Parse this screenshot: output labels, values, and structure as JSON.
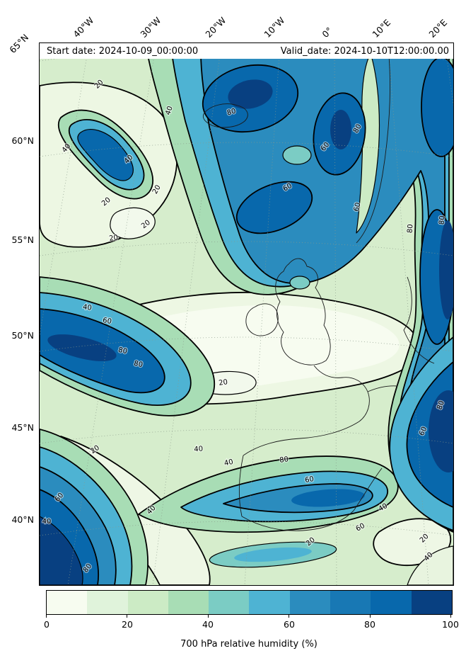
{
  "header": {
    "start_date": "Start date: 2024-10-09_00:00:00",
    "valid_date": "Valid_date: 2024-10-10T12:00:00.00"
  },
  "axes": {
    "lon_ticks": [
      "40°W",
      "30°W",
      "20°W",
      "10°W",
      "0°",
      "10°E",
      "20°E"
    ],
    "lat_ticks": [
      "65°N",
      "60°N",
      "55°N",
      "50°N",
      "45°N",
      "40°N"
    ]
  },
  "colorbar": {
    "label": "700 hPa relative humidity (%)",
    "ticks": [
      "0",
      "20",
      "40",
      "60",
      "80",
      "100"
    ],
    "colors": [
      "#f7fcf0",
      "#e0f3db",
      "#ccebc5",
      "#a8ddb5",
      "#7bccc4",
      "#4eb3d3",
      "#2b8cbe",
      "#1878b4",
      "#0868ac",
      "#084081"
    ]
  },
  "map": {
    "contour_labels": {
      "l20": "20",
      "l40": "40",
      "l60": "60",
      "l80": "80"
    }
  },
  "chart_data": {
    "type": "heatmap",
    "subtype": "filled-contour-weather-map",
    "title": "700 hPa relative humidity (%)",
    "start_date": "2024-10-09_00:00:00",
    "valid_date": "2024-10-10T12:00:00.00",
    "units": "%",
    "colormap": "green-to-blue (GnBu-like)",
    "fill_levels": [
      0,
      10,
      20,
      30,
      40,
      50,
      60,
      70,
      80,
      90,
      100
    ],
    "contour_line_levels": [
      20,
      40,
      60,
      80
    ],
    "colorbar_ticks": [
      0,
      20,
      40,
      60,
      80,
      100
    ],
    "xlabel": "",
    "ylabel": "",
    "x_tick_labels": [
      "40°W",
      "30°W",
      "20°W",
      "10°W",
      "0°",
      "10°E",
      "20°E"
    ],
    "y_tick_labels": [
      "65°N",
      "60°N",
      "55°N",
      "50°N",
      "45°N",
      "40°N"
    ],
    "high_humidity_regions": [
      "large 60-100% area over the Norwegian Sea / Iceland and north of Scotland",
      "narrow 80%+ streak near 60°N 40°W",
      "80-100% band along the eastern edge (Scandinavia / Baltic) extending south",
      "60-80% south-west-to-north-east band in the mid-Atlantic near 45-48°N",
      "80-100% mass in the south-west corner of the domain",
      "60-80% band from the Bay of Biscay across northern Iberia",
      "80-100% area in the south-east corner (western Mediterranean)"
    ],
    "low_humidity_regions": [
      "below 20% over France, the English Channel and central Europe",
      "below 20% band south of Ireland across the central Atlantic",
      "below 20-40% diagonal dry slots in the south and bottom-right corner"
    ]
  }
}
